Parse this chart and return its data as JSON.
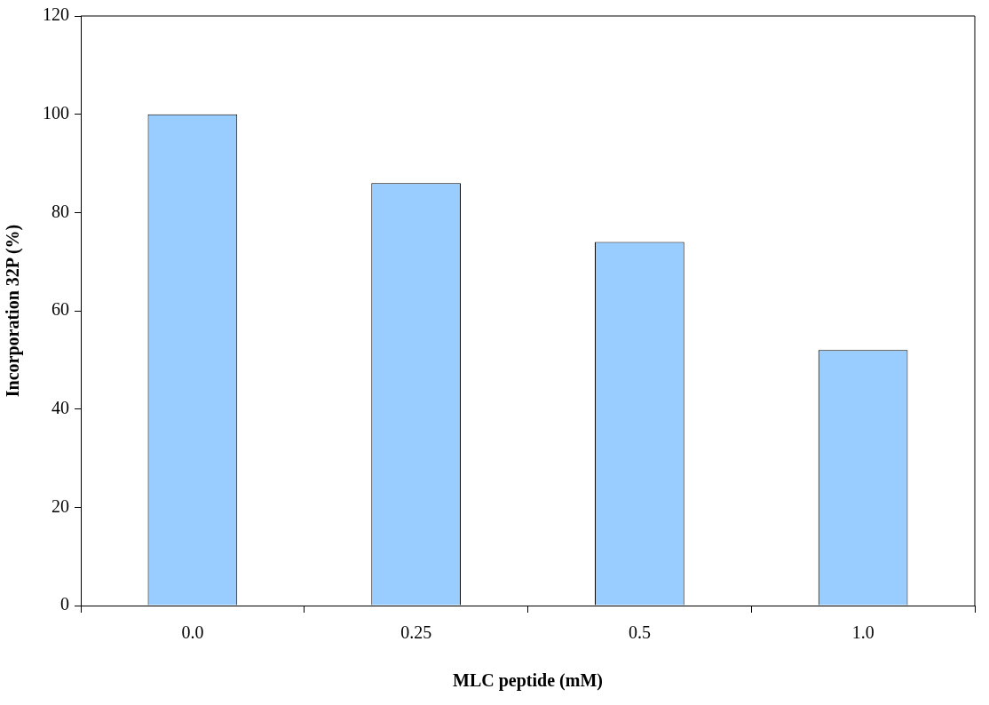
{
  "chart_data": {
    "type": "bar",
    "xlabel": "MLC peptide (mM)",
    "ylabel": "Incorporation 32P (%)",
    "categories": [
      "0.0",
      "0.25",
      "0.5",
      "1.0"
    ],
    "values": [
      100,
      86,
      74,
      52
    ],
    "color": "#99ccff",
    "ylim": [
      0,
      120
    ],
    "yticks": [
      0,
      20,
      40,
      60,
      80,
      100,
      120
    ],
    "grid": false,
    "legend": false
  }
}
